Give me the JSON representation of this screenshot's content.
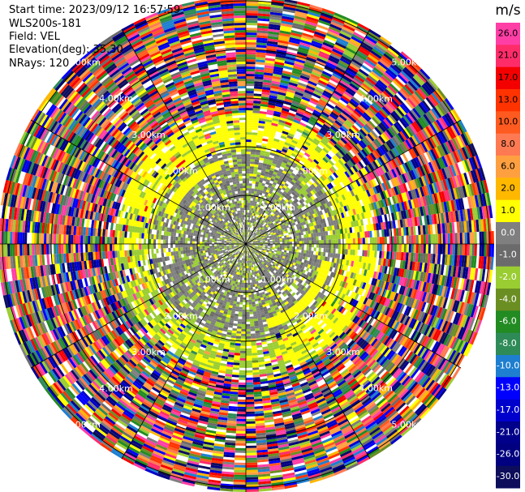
{
  "header": {
    "start_time": "Start time: 2023/09/12 16:57:59",
    "instrument": "WLS200s-181",
    "field": "Field: VEL",
    "elevation": "Elevation(deg): 35.30",
    "nrays": "NRays: 120"
  },
  "chart_data": {
    "type": "heatmap",
    "projection": "polar (PPI scan)",
    "field": "VEL",
    "units": "m/s",
    "nrays": 120,
    "elevation_deg": 35.3,
    "ring_labels": [
      "1.00km",
      "2.00km",
      "3.00km",
      "4.00km",
      "5.00km"
    ],
    "ring_radii_km": [
      1,
      2,
      3,
      4,
      5
    ],
    "colorbar": {
      "label": "m/s",
      "ticks": [
        "26.0",
        "21.0",
        "17.0",
        "13.0",
        "10.0",
        "8.0",
        "6.0",
        "2.0",
        "1.0",
        "0.0",
        "-1.0",
        "-2.0",
        "-4.0",
        "-6.0",
        "-8.0",
        "-10.0",
        "-13.0",
        "-17.0",
        "-21.0",
        "-26.0",
        "-30.0"
      ],
      "colors": [
        "#ff3ea6",
        "#ff2c6a",
        "#f50000",
        "#ff3300",
        "#ff5a1f",
        "#ff7a52",
        "#ffa040",
        "#ffb800",
        "#ffff00",
        "#7f7f7f",
        "#6b6b6b",
        "#9acd32",
        "#6b8e23",
        "#228b22",
        "#2e8b57",
        "#1e7fd0",
        "#0000ff",
        "#0000cd",
        "#00008b",
        "#000080",
        "#0d0d5c"
      ]
    },
    "description": "Inner ~1.8km mostly near-zero velocities (gray) with green/yellow patches; yellow ring ~2-2.6km; beyond ~2.6km noisy mixed colors."
  }
}
